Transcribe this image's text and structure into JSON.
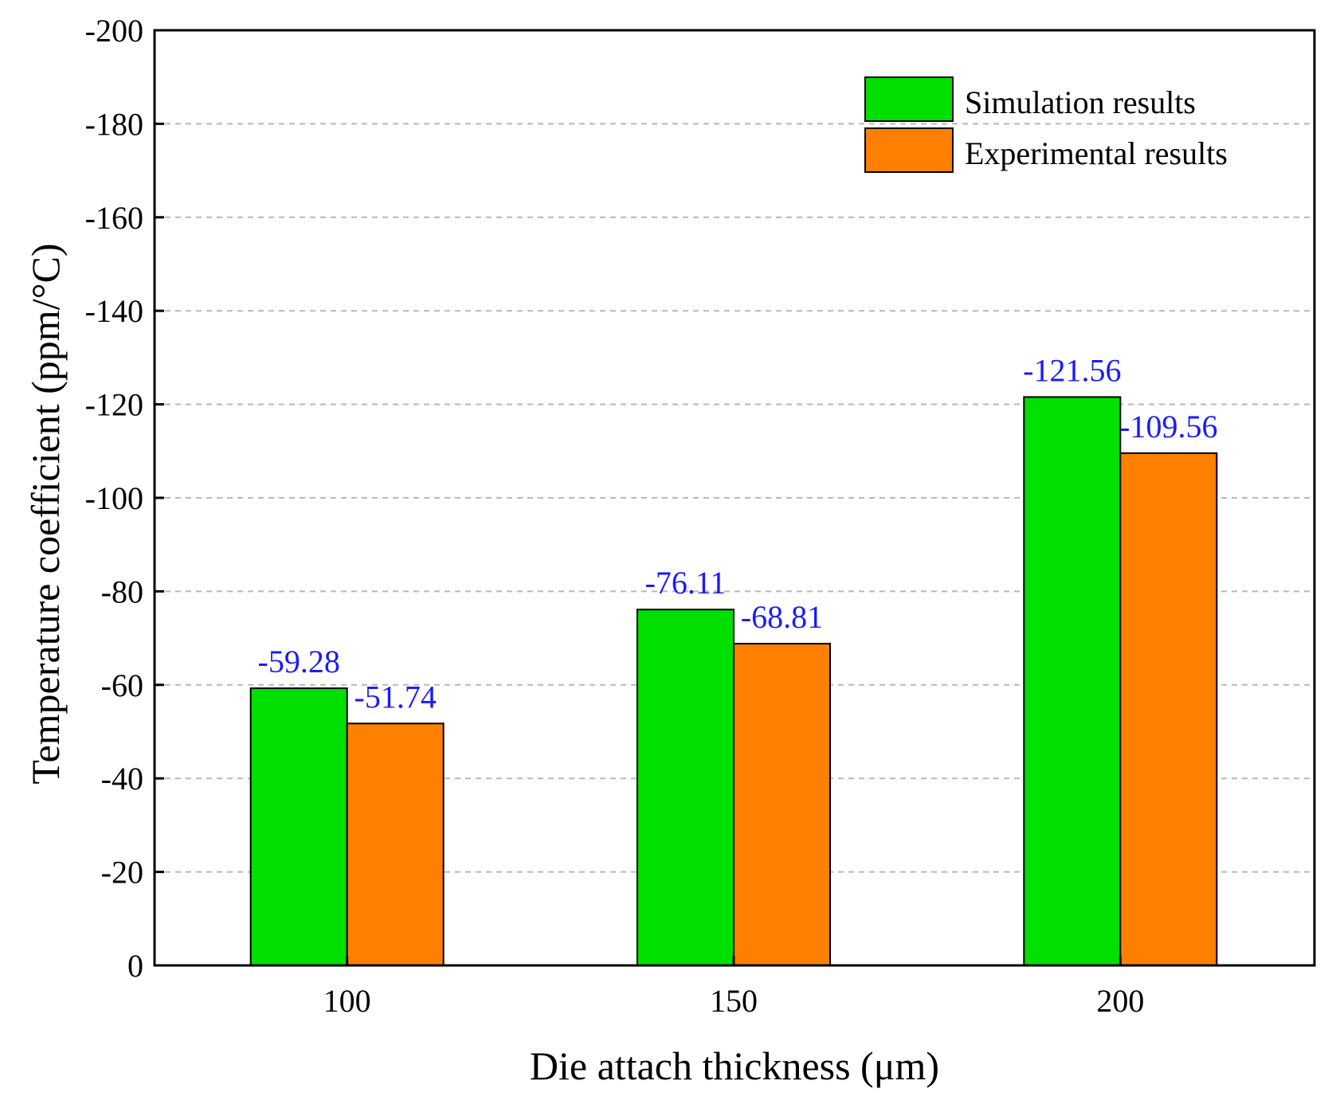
{
  "chart_data": {
    "type": "bar",
    "title": "",
    "xlabel": "Die attach thickness (μm)",
    "ylabel": "Temperature coefficient (ppm/°C)",
    "categories": [
      "100",
      "150",
      "200"
    ],
    "ylim": [
      0,
      -200
    ],
    "yticks": [
      0,
      -20,
      -40,
      -60,
      -80,
      -100,
      -120,
      -140,
      -160,
      -180,
      -200
    ],
    "ytick_labels": [
      "0",
      "-20",
      "-40",
      "-60",
      "-80",
      "-100",
      "-120",
      "-140",
      "-160",
      "-180",
      "-200"
    ],
    "grid": "horizontal-dashed",
    "legend_position": "top-right",
    "label_color": "#1a1aff",
    "series": [
      {
        "name": "Simulation results",
        "color": "#00e000",
        "values": [
          -59.28,
          -76.11,
          -121.56
        ],
        "labels": [
          "-59.28",
          "-76.11",
          "-121.56"
        ]
      },
      {
        "name": "Experimental results",
        "color": "#ff8000",
        "values": [
          -51.74,
          -68.81,
          -109.56
        ],
        "labels": [
          "-51.74",
          "-68.81",
          "-109.56"
        ]
      }
    ]
  }
}
